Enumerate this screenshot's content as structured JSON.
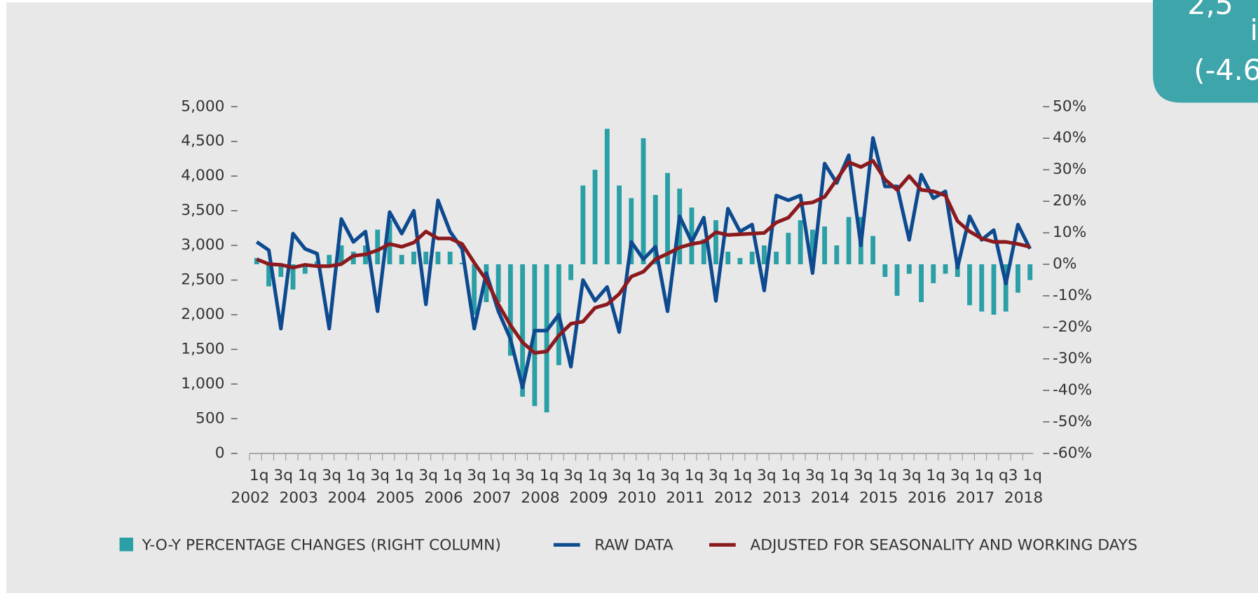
{
  "chart_data": {
    "type": "bar_line",
    "categories": [
      "1q",
      null,
      "3q",
      null,
      "1q",
      null,
      "3q",
      null,
      "1q",
      null,
      "3q",
      null,
      "1q",
      null,
      "3q",
      null,
      "1q",
      null,
      "3q",
      null,
      "1q",
      null,
      "3q",
      null,
      "1q",
      null,
      "3q",
      null,
      "1q",
      null,
      "3q",
      null,
      "1q",
      null,
      "3q",
      null,
      "1q",
      null,
      "3q",
      null,
      "1q",
      null,
      "3q",
      null,
      "1q",
      null,
      "3q",
      null,
      "1q",
      null,
      "3q",
      null,
      "1q",
      null,
      "3q",
      null,
      "1q",
      null,
      "3q",
      null,
      "1q",
      null,
      "q3",
      null,
      "1q"
    ],
    "years": [
      "2002",
      "2003",
      "2004",
      "2005",
      "2006",
      "2007",
      "2008",
      "2009",
      "2010",
      "2011",
      "2012",
      "2013",
      "2014",
      "2015",
      "2016",
      "2017",
      "2018"
    ],
    "series": [
      {
        "name": "Y-O-Y PERCENTAGE CHANGES (RIGHT COLUMN)",
        "kind": "bar",
        "axis": "y2",
        "color": "#2a9fa6",
        "values": [
          2,
          -7,
          -4,
          -8,
          -3,
          1,
          3,
          6,
          4,
          6,
          11,
          14,
          3,
          4,
          4,
          4,
          4,
          0.5,
          -16,
          -12,
          -12,
          -29,
          -42,
          -45,
          -47,
          -32,
          -5,
          25,
          30,
          43,
          25,
          21,
          40,
          22,
          29,
          24,
          18,
          8,
          14,
          4,
          2,
          4,
          6,
          4,
          10,
          14,
          11,
          12,
          6,
          15,
          15,
          9,
          -4,
          -10,
          -3,
          -12,
          -6,
          -3,
          -4,
          -13,
          -15,
          -16,
          -15,
          -9,
          -5
        ]
      },
      {
        "name": "RAW DATA",
        "kind": "line",
        "color": "#0d4a8f",
        "values": [
          3050,
          2930,
          1800,
          3170,
          2950,
          2880,
          1800,
          3380,
          3050,
          3200,
          2050,
          3480,
          3170,
          3500,
          2150,
          3650,
          3200,
          2950,
          1800,
          2600,
          2050,
          1650,
          950,
          1770,
          1770,
          2000,
          1250,
          2500,
          2200,
          2400,
          1750,
          3050,
          2800,
          2980,
          2050,
          3420,
          3050,
          3400,
          2200,
          3530,
          3200,
          3300,
          2350,
          3720,
          3650,
          3720,
          2600,
          4180,
          3900,
          4300,
          3000,
          4550,
          3850,
          3850,
          3080,
          4020,
          3680,
          3780,
          2680,
          3420,
          3080,
          3220,
          2450,
          3300,
          2950
        ]
      },
      {
        "name": "ADJUSTED FOR SEASONALITY AND WORKING DAYS",
        "kind": "line",
        "color": "#8b1a1f",
        "values": [
          2800,
          2730,
          2720,
          2680,
          2720,
          2700,
          2700,
          2730,
          2850,
          2870,
          2930,
          3020,
          2980,
          3040,
          3200,
          3100,
          3100,
          3020,
          2750,
          2500,
          2150,
          1850,
          1600,
          1450,
          1470,
          1700,
          1870,
          1900,
          2100,
          2150,
          2300,
          2550,
          2620,
          2800,
          2880,
          2970,
          3020,
          3050,
          3190,
          3150,
          3160,
          3170,
          3180,
          3330,
          3400,
          3600,
          3620,
          3700,
          3950,
          4200,
          4130,
          4220,
          3950,
          3800,
          4000,
          3800,
          3780,
          3720,
          3350,
          3200,
          3100,
          3050,
          3050,
          3020,
          2980
        ]
      }
    ],
    "ylim": [
      0,
      5000
    ],
    "yticks": [
      0,
      500,
      {
        "value": 1000,
        "label": "1,000"
      },
      {
        "value": 1500,
        "label": "1,500"
      },
      {
        "value": 2000,
        "label": "2,000"
      },
      {
        "value": 2500,
        "label": "2,500"
      },
      {
        "value": 3000,
        "label": "3,000"
      },
      {
        "value": 3500,
        "label": "3,500"
      },
      {
        "value": 4000,
        "label": "4,000"
      },
      {
        "value": 4500,
        "label": "4,500"
      },
      {
        "value": 5000,
        "label": "5,000"
      }
    ],
    "y2lim": [
      -60,
      50
    ],
    "y2ticks": [
      {
        "value": -60,
        "label": "-60%"
      },
      {
        "value": -50,
        "label": "-50%"
      },
      {
        "value": -40,
        "label": "-40%"
      },
      {
        "value": -30,
        "label": "-30%"
      },
      {
        "value": -20,
        "label": "-20%"
      },
      {
        "value": -10,
        "label": "-10%"
      },
      {
        "value": 0,
        "label": "0%"
      },
      {
        "value": 10,
        "label": "10%"
      },
      {
        "value": 20,
        "label": "20%"
      },
      {
        "value": 30,
        "label": "30%"
      },
      {
        "value": 40,
        "label": "40%"
      },
      {
        "value": 50,
        "label": "50%"
      }
    ],
    "callout": [
      "2,5",
      "i",
      "(-4.6"
    ]
  }
}
